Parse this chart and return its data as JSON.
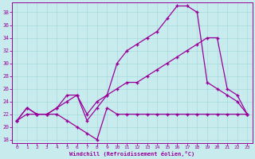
{
  "xlabel": "Windchill (Refroidissement éolien,°C)",
  "xlim": [
    -0.5,
    23.5
  ],
  "ylim": [
    17.5,
    39.5
  ],
  "yticks": [
    18,
    20,
    22,
    24,
    26,
    28,
    30,
    32,
    34,
    36,
    38
  ],
  "xticks": [
    0,
    1,
    2,
    3,
    4,
    5,
    6,
    7,
    8,
    9,
    10,
    11,
    12,
    13,
    14,
    15,
    16,
    17,
    18,
    19,
    20,
    21,
    22,
    23
  ],
  "bg_color": "#c8ecee",
  "grid_color": "#a8d8dc",
  "line_color": "#990099",
  "top_x": [
    0,
    1,
    2,
    3,
    4,
    5,
    6,
    7,
    8,
    9,
    10,
    11,
    12,
    13,
    14,
    15,
    16,
    17,
    18,
    19,
    20,
    21,
    22,
    23
  ],
  "top_y": [
    21,
    23,
    22,
    22,
    23,
    25,
    25,
    21,
    23,
    25,
    30,
    32,
    33,
    34,
    35,
    37,
    39,
    39,
    38,
    27,
    26,
    25,
    24,
    22
  ],
  "mid_x": [
    0,
    1,
    2,
    3,
    4,
    5,
    6,
    7,
    8,
    9,
    10,
    11,
    12,
    13,
    14,
    15,
    16,
    17,
    18,
    19,
    20,
    21,
    22,
    23
  ],
  "mid_y": [
    21,
    23,
    22,
    22,
    23,
    24,
    25,
    22,
    24,
    25,
    26,
    27,
    27,
    28,
    29,
    30,
    31,
    32,
    33,
    34,
    34,
    26,
    25,
    22
  ],
  "bot_x": [
    0,
    1,
    2,
    3,
    4,
    5,
    6,
    7,
    8,
    9,
    10,
    11,
    12,
    13,
    14,
    15,
    16,
    17,
    18,
    19,
    20,
    21,
    22,
    23
  ],
  "bot_y": [
    21,
    22,
    22,
    22,
    22,
    21,
    20,
    19,
    18,
    23,
    22,
    22,
    22,
    22,
    22,
    22,
    22,
    22,
    22,
    22,
    22,
    22,
    22,
    22
  ]
}
